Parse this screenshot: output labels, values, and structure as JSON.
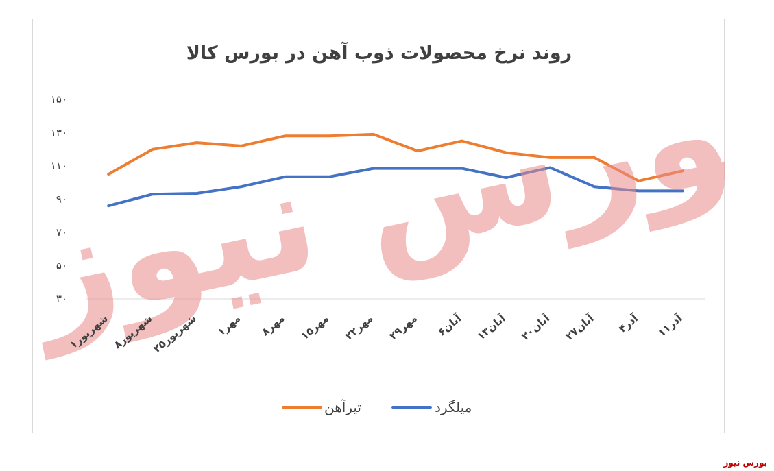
{
  "chart_data": {
    "type": "line",
    "title": "روند نرخ محصولات ذوب آهن در بورس کالا",
    "categories": [
      "۱شهریور",
      "۸شهریور",
      "۲۵شهریور",
      "۱مهر",
      "۸مهر",
      "۱۵مهر",
      "۲۲مهر",
      "۲۹مهر",
      "۶آبان",
      "۱۳آبان",
      "۲۰آبان",
      "۲۷آبان",
      "۴آذر",
      "۱۱آذر"
    ],
    "y_ticks": [
      "۱۵۰",
      "۱۳۰",
      "۱۱۰",
      "۹۰",
      "۷۰",
      "۵۰",
      "۳۰"
    ],
    "ylim": [
      30,
      150
    ],
    "series": [
      {
        "name": "تیرآهن",
        "color": "#ed7d31",
        "values": [
          105,
          120,
          124,
          122,
          128,
          128,
          129,
          119,
          125,
          118,
          115,
          115,
          101,
          107
        ]
      },
      {
        "name": "میلگرد",
        "color": "#4472c4",
        "values": [
          86,
          93,
          93.5,
          97.5,
          103.5,
          103.5,
          108.5,
          108.5,
          108.5,
          103,
          109,
          97.5,
          95,
          95
        ]
      }
    ],
    "legend_position": "bottom",
    "grid": false
  },
  "watermark": {
    "text": "بورس نیوز",
    "color": "#e98a8a"
  },
  "source_label": "بورس نیوز"
}
